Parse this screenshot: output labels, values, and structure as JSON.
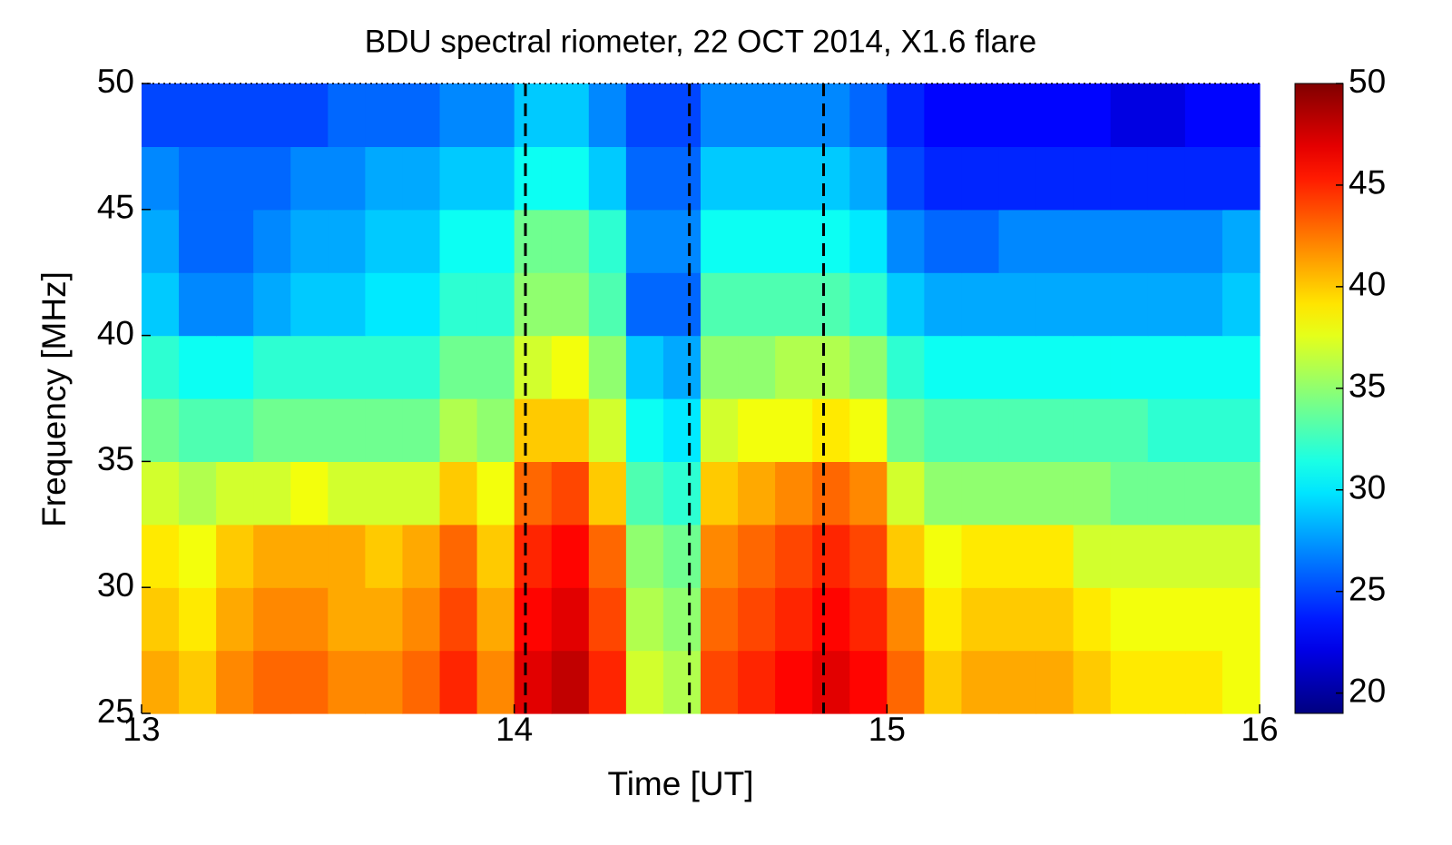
{
  "chart_data": {
    "type": "heatmap",
    "title": "BDU spectral riometer, 22 OCT 2014, X1.6 flare",
    "xlabel": "Time [UT]",
    "ylabel": "Frequency [MHz]",
    "colormap": "jet",
    "xlim": [
      13,
      16
    ],
    "ylim": [
      25,
      50
    ],
    "clim": [
      19,
      50
    ],
    "xticks": [
      13,
      14,
      15,
      16
    ],
    "yticks": [
      25,
      30,
      35,
      40,
      45,
      50
    ],
    "cticks": [
      20,
      25,
      30,
      35,
      40,
      45,
      50
    ],
    "vlines": [
      14.03,
      14.47,
      14.83
    ],
    "x": [
      13.05,
      13.15,
      13.25,
      13.35,
      13.45,
      13.55,
      13.65,
      13.75,
      13.85,
      13.95,
      14.05,
      14.15,
      14.25,
      14.35,
      14.45,
      14.55,
      14.65,
      14.75,
      14.85,
      14.95,
      15.05,
      15.15,
      15.25,
      15.35,
      15.45,
      15.55,
      15.65,
      15.75,
      15.85,
      15.95
    ],
    "y": [
      26.25,
      28.75,
      31.25,
      33.75,
      36.25,
      38.75,
      41.25,
      43.75,
      46.25,
      48.75
    ],
    "z": [
      [
        41,
        40,
        42,
        43,
        43,
        42,
        42,
        43,
        45,
        42,
        47,
        48,
        45,
        37,
        36,
        44,
        45,
        46,
        47,
        46,
        43,
        40,
        41,
        41,
        41,
        40,
        39,
        39,
        39,
        38
      ],
      [
        40,
        39,
        41,
        42,
        42,
        41,
        41,
        42,
        44,
        41,
        46,
        47,
        44,
        36,
        35,
        43,
        44,
        45,
        46,
        45,
        42,
        39,
        40,
        40,
        40,
        39,
        38,
        38,
        38,
        38
      ],
      [
        39,
        38,
        40,
        41,
        41,
        41,
        40,
        41,
        43,
        40,
        45,
        46,
        43,
        35,
        34,
        42,
        43,
        44,
        45,
        44,
        40,
        38,
        39,
        39,
        39,
        37,
        37,
        37,
        37,
        37
      ],
      [
        37,
        36,
        37,
        37,
        38,
        37,
        37,
        37,
        40,
        38,
        43,
        44,
        40,
        33,
        32,
        40,
        41,
        42,
        43,
        42,
        37,
        35,
        35,
        35,
        35,
        35,
        34,
        34,
        34,
        34
      ],
      [
        34,
        33,
        33,
        34,
        34,
        34,
        34,
        34,
        36,
        35,
        40,
        40,
        37,
        31,
        30,
        37,
        38,
        38,
        39,
        38,
        34,
        33,
        33,
        33,
        33,
        33,
        33,
        32,
        32,
        32
      ],
      [
        32,
        31,
        31,
        32,
        32,
        32,
        32,
        32,
        34,
        34,
        37,
        38,
        35,
        29,
        28,
        35,
        35,
        36,
        36,
        35,
        32,
        31,
        31,
        31,
        31,
        31,
        31,
        31,
        31,
        31
      ],
      [
        29,
        27,
        27,
        28,
        29,
        29,
        30,
        30,
        32,
        32,
        35,
        35,
        33,
        26,
        26,
        33,
        33,
        33,
        33,
        32,
        29,
        28,
        28,
        28,
        28,
        28,
        28,
        28,
        28,
        29
      ],
      [
        28,
        26,
        26,
        27,
        28,
        28,
        29,
        29,
        31,
        31,
        34,
        34,
        32,
        27,
        27,
        31,
        31,
        31,
        31,
        30,
        27,
        26,
        26,
        27,
        27,
        27,
        27,
        27,
        27,
        28
      ],
      [
        27,
        26,
        26,
        26,
        27,
        27,
        28,
        28,
        29,
        29,
        31,
        31,
        29,
        26,
        26,
        29,
        29,
        29,
        29,
        28,
        25,
        24,
        24,
        24,
        24,
        24,
        24,
        24,
        24,
        24
      ],
      [
        25,
        25,
        25,
        25,
        25,
        26,
        26,
        26,
        27,
        27,
        29,
        29,
        27,
        25,
        25,
        27,
        27,
        27,
        27,
        26,
        24,
        23,
        23,
        23,
        23,
        23,
        22,
        22,
        23,
        23
      ]
    ]
  }
}
